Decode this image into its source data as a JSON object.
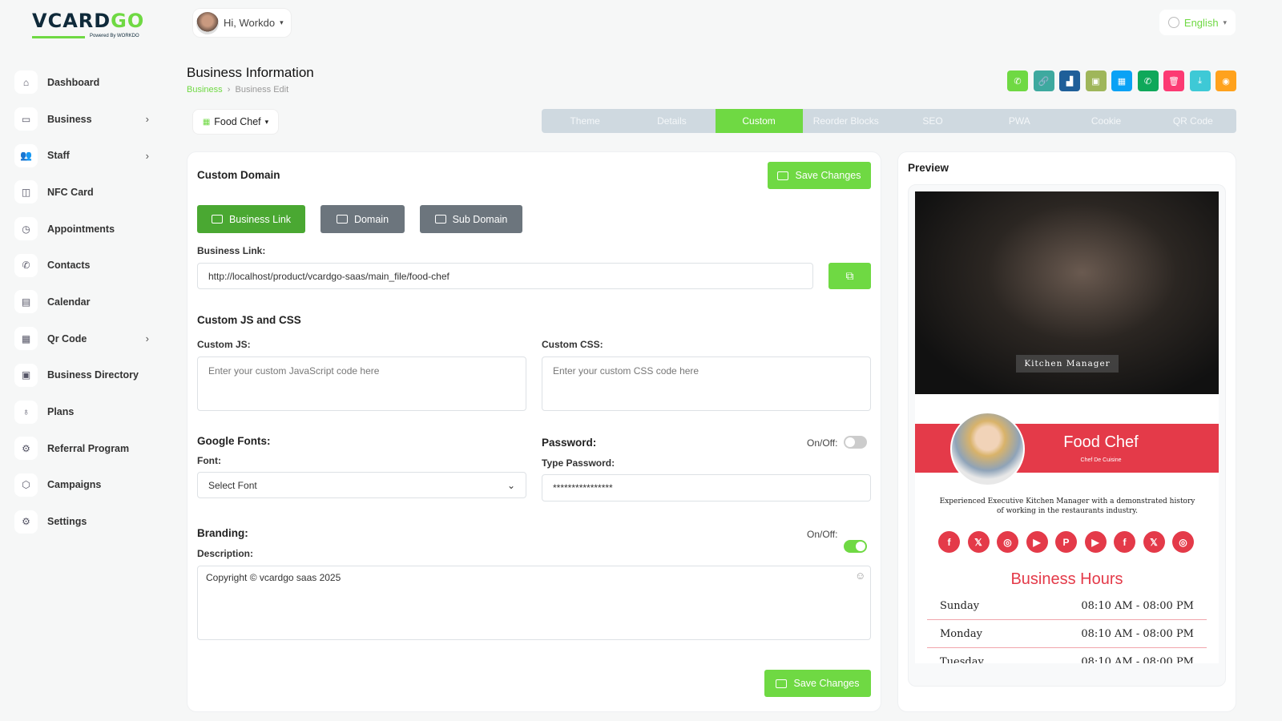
{
  "brand": {
    "logo_main": "VCARD",
    "logo_accent": "GO",
    "powered": "Powered By WORKDO"
  },
  "user": {
    "greeting": "Hi, Workdo"
  },
  "language": {
    "label": "English"
  },
  "sidebar": {
    "items": [
      {
        "label": "Dashboard",
        "icon": "home",
        "chevron": false
      },
      {
        "label": "Business",
        "icon": "card",
        "chevron": true
      },
      {
        "label": "Staff",
        "icon": "users",
        "chevron": true
      },
      {
        "label": "NFC Card",
        "icon": "nfc",
        "chevron": false
      },
      {
        "label": "Appointments",
        "icon": "calendar-clock",
        "chevron": false
      },
      {
        "label": "Contacts",
        "icon": "phone",
        "chevron": false
      },
      {
        "label": "Calendar",
        "icon": "calendar",
        "chevron": false
      },
      {
        "label": "Qr Code",
        "icon": "qrcode",
        "chevron": true
      },
      {
        "label": "Business Directory",
        "icon": "briefcase",
        "chevron": false
      },
      {
        "label": "Plans",
        "icon": "award",
        "chevron": false
      },
      {
        "label": "Referral Program",
        "icon": "gift",
        "chevron": false
      },
      {
        "label": "Campaigns",
        "icon": "box",
        "chevron": false
      },
      {
        "label": "Settings",
        "icon": "gear",
        "chevron": false
      }
    ]
  },
  "page": {
    "title": "Business Information",
    "breadcrumb": [
      "Business",
      "Business Edit"
    ],
    "business_select": "Food Chef"
  },
  "quick_actions": [
    {
      "name": "whatsapp",
      "color": "#6fd943",
      "glyph": "✆"
    },
    {
      "name": "link",
      "color": "#3ea99f",
      "glyph": "🔗"
    },
    {
      "name": "analytics",
      "color": "#1f5f99",
      "glyph": "▟"
    },
    {
      "name": "calendar",
      "color": "#9fb65a",
      "glyph": "▣"
    },
    {
      "name": "qrcode",
      "color": "#0aa2f5",
      "glyph": "▦"
    },
    {
      "name": "phone",
      "color": "#0fa85a",
      "glyph": "✆"
    },
    {
      "name": "delete",
      "color": "#fc3a73",
      "glyph": "🗑"
    },
    {
      "name": "download",
      "color": "#3ec9d6",
      "glyph": "⤓"
    },
    {
      "name": "preview",
      "color": "#ffa21d",
      "glyph": "◉"
    }
  ],
  "tabs": [
    {
      "label": "Theme"
    },
    {
      "label": "Details"
    },
    {
      "label": "Custom",
      "active": true
    },
    {
      "label": "Reorder Blocks"
    },
    {
      "label": "SEO"
    },
    {
      "label": "PWA"
    },
    {
      "label": "Cookie"
    },
    {
      "label": "QR Code"
    }
  ],
  "form": {
    "custom_domain": "Custom Domain",
    "save": "Save Changes",
    "domain_buttons": [
      "Business Link",
      "Domain",
      "Sub Domain"
    ],
    "business_link_label": "Business Link:",
    "business_link_value": "http://localhost/product/vcardgo-saas/main_file/food-chef",
    "js_css_title": "Custom JS and CSS",
    "js_label": "Custom JS:",
    "js_placeholder": "Enter your custom JavaScript code here",
    "css_label": "Custom CSS:",
    "css_placeholder": "Enter your custom CSS code here",
    "fonts_title": "Google Fonts:",
    "font_label": "Font:",
    "font_value": "Select Font",
    "password_title": "Password:",
    "onoff": "On/Off:",
    "password_on": false,
    "type_password": "Type Password:",
    "password_value": "****************",
    "branding_title": "Branding:",
    "branding_on": true,
    "description_label": "Description:",
    "description_value": "Copyright © vcardgo saas 2025"
  },
  "preview": {
    "title": "Preview",
    "hero_tag": "Kitchen Manager",
    "name": "Food Chef",
    "role": "Chef De Cuisine",
    "bio": "Experienced Executive Kitchen Manager with a demonstrated history of working in the restaurants industry.",
    "social": [
      {
        "icon": "facebook",
        "g": "f"
      },
      {
        "icon": "x",
        "g": "𝕏"
      },
      {
        "icon": "instagram",
        "g": "◎"
      },
      {
        "icon": "youtube",
        "g": "▶"
      },
      {
        "icon": "pinterest",
        "g": "P"
      },
      {
        "icon": "youtube",
        "g": "▶"
      },
      {
        "icon": "facebook",
        "g": "f"
      },
      {
        "icon": "x",
        "g": "𝕏"
      },
      {
        "icon": "instagram",
        "g": "◎"
      }
    ],
    "hours_title": "Business Hours",
    "hours": [
      {
        "day": "Sunday",
        "time": "08:10 AM - 08:00 PM"
      },
      {
        "day": "Monday",
        "time": "08:10 AM - 08:00 PM"
      },
      {
        "day": "Tuesday",
        "time": "08:10 AM - 08:00 PM"
      }
    ],
    "accent": "#e43a49"
  }
}
